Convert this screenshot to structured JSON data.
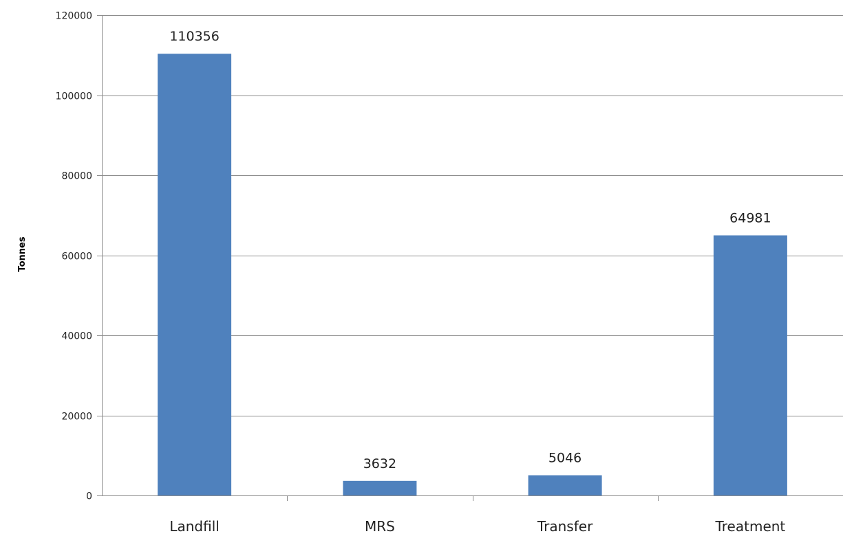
{
  "chart_data": {
    "type": "bar",
    "title": "",
    "xlabel": "",
    "ylabel": "Tonnes",
    "categories": [
      "Landfill",
      "MRS",
      "Transfer",
      "Treatment"
    ],
    "values": [
      110356,
      3632,
      5046,
      64981
    ],
    "data_labels": [
      "110356",
      "3632",
      "5046",
      "64981"
    ],
    "ylim": [
      0,
      120000
    ],
    "yticks": [
      0,
      20000,
      40000,
      60000,
      80000,
      100000,
      120000
    ],
    "ytick_labels": [
      "0",
      "20000",
      "40000",
      "60000",
      "80000",
      "100000",
      "120000"
    ],
    "grid": true,
    "legend": "none",
    "bar_color": "#4f81bd"
  }
}
